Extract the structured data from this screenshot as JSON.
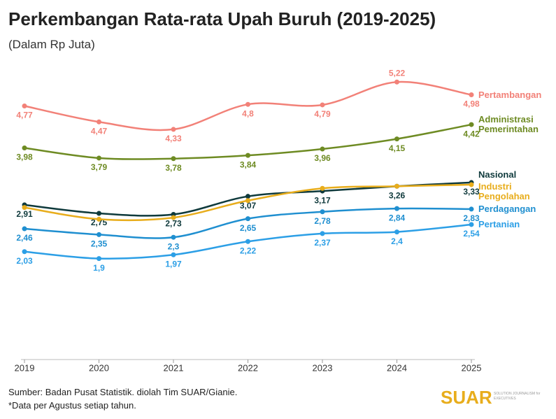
{
  "chart_data": {
    "type": "line",
    "title": "Perkembangan Rata-rata Upah Buruh (2019-2025)",
    "subtitle": "(Dalam Rp Juta)",
    "categories": [
      "2019",
      "2020",
      "2021",
      "2022",
      "2023",
      "2024",
      "2025"
    ],
    "ylim": [
      0,
      6
    ],
    "series": [
      {
        "name": "Pertambangan",
        "color": "#f28178",
        "values": [
          4.77,
          4.47,
          4.33,
          4.8,
          4.79,
          5.22,
          4.98
        ],
        "value_labels": [
          "4,77",
          "4,47",
          "4,33",
          "4,8",
          "4,79",
          "5,22",
          "4,98"
        ]
      },
      {
        "name": "Administrasi Pemerintahan",
        "color": "#6e8b23",
        "values": [
          3.98,
          3.79,
          3.78,
          3.84,
          3.96,
          4.15,
          4.42
        ],
        "value_labels": [
          "3,98",
          "3,79",
          "3,78",
          "3,84",
          "3,96",
          "4,15",
          "4,42"
        ]
      },
      {
        "name": "Nasional",
        "color": "#0f3a3c",
        "values": [
          2.91,
          2.75,
          2.73,
          3.07,
          3.17,
          3.26,
          3.33
        ],
        "value_labels": [
          "2,91",
          "2,75",
          "2,73",
          "3,07",
          "3,17",
          "3,26",
          "3,33"
        ]
      },
      {
        "name": "Industri Pengolahan",
        "color": "#e8ad1c",
        "values": [
          2.86,
          2.64,
          2.67,
          2.99,
          3.22,
          3.26,
          3.29
        ]
      },
      {
        "name": "Perdagangan",
        "color": "#1f8fd0",
        "values": [
          2.46,
          2.35,
          2.3,
          2.65,
          2.78,
          2.84,
          2.83
        ],
        "value_labels": [
          "2,46",
          "2,35",
          "2,3",
          "2,65",
          "2,78",
          "2,84",
          "2,83"
        ]
      },
      {
        "name": "Pertanian",
        "color": "#2c9fe6",
        "values": [
          2.03,
          1.9,
          1.97,
          2.22,
          2.37,
          2.4,
          2.54
        ],
        "value_labels": [
          "2,03",
          "1,9",
          "1,97",
          "2,22",
          "2,37",
          "2,4",
          "2,54"
        ]
      }
    ],
    "source": "Sumber: Badan Pusat Statistik. diolah Tim SUAR/Gianie.",
    "note": "*Data per Agustus setiap tahun.",
    "logo": "SUAR",
    "logo_tagline": "SOLUTION JOURNALISM for EXECUTIVES"
  }
}
